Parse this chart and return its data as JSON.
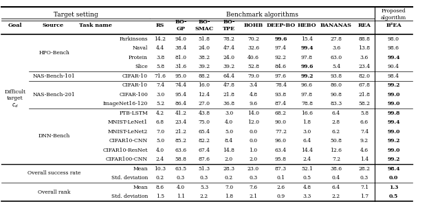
{
  "header2": [
    "Goal",
    "Source",
    "Task name",
    "RS",
    "BO-\nGP",
    "BO-\nSMAC",
    "BO-\nTPE",
    "BOHB",
    "DEEP-BO",
    "HEBO",
    "BANANAS",
    "REA",
    "B²EA"
  ],
  "sections": [
    {
      "source": "HPO-Bench",
      "rows": [
        {
          "task": "Parkinsons",
          "vals": [
            "14.2",
            "94.0",
            "51.8",
            "78.2",
            "70.2",
            "99.6",
            "15.4",
            "27.8",
            "88.8",
            "98.0"
          ],
          "bold": [
            5
          ]
        },
        {
          "task": "Naval",
          "vals": [
            "4.4",
            "38.4",
            "24.0",
            "47.4",
            "32.6",
            "97.4",
            "99.4",
            "3.6",
            "13.8",
            "98.6"
          ],
          "bold": [
            6
          ]
        },
        {
          "task": "Protein",
          "vals": [
            "3.8",
            "81.0",
            "38.2",
            "24.0",
            "40.6",
            "92.2",
            "97.8",
            "63.0",
            "3.6",
            "99.4"
          ],
          "bold": [
            9
          ]
        },
        {
          "task": "Slice",
          "vals": [
            "5.8",
            "31.6",
            "39.2",
            "39.2",
            "52.8",
            "84.6",
            "99.6",
            "5.4",
            "23.4",
            "90.4"
          ],
          "bold": [
            6
          ]
        }
      ]
    },
    {
      "source": "NAS-Bench-101",
      "rows": [
        {
          "task": "CIFAR-10",
          "vals": [
            "71.6",
            "95.0",
            "88.2",
            "64.4",
            "79.0",
            "97.6",
            "99.2",
            "93.8",
            "82.0",
            "98.4"
          ],
          "bold": [
            6
          ]
        }
      ]
    },
    {
      "source": "NAS-Bench-201",
      "rows": [
        {
          "task": "CIFAR-10",
          "vals": [
            "7.4",
            "74.4",
            "16.0",
            "47.8",
            "3.4",
            "78.4",
            "96.6",
            "86.0",
            "67.8",
            "99.2"
          ],
          "bold": [
            9
          ]
        },
        {
          "task": "CIFAR-100",
          "vals": [
            "3.0",
            "95.4",
            "12.4",
            "21.8",
            "4.8",
            "93.8",
            "97.8",
            "90.8",
            "21.8",
            "99.0"
          ],
          "bold": [
            9
          ]
        },
        {
          "task": "ImageNet16-120",
          "vals": [
            "5.2",
            "86.4",
            "27.0",
            "36.8",
            "9.6",
            "87.4",
            "78.8",
            "83.3",
            "58.2",
            "99.0"
          ],
          "bold": [
            9
          ]
        }
      ]
    },
    {
      "source": "DNN-Bench",
      "rows": [
        {
          "task": "PTB-LSTM",
          "vals": [
            "4.2",
            "41.2",
            "43.8",
            "3.0",
            "14.0",
            "68.2",
            "16.6",
            "6.4",
            "5.8",
            "99.8"
          ],
          "bold": [
            9
          ]
        },
        {
          "task": "MNIST-LeNet1",
          "vals": [
            "6.8",
            "23.4",
            "75.0",
            "4.0",
            "12.0",
            "90.0",
            "1.8",
            "2.8",
            "6.6",
            "99.4"
          ],
          "bold": [
            9
          ]
        },
        {
          "task": "MNIST-LeNet2",
          "vals": [
            "7.0",
            "21.2",
            "65.4",
            "5.0",
            "0.0",
            "77.2",
            "3.0",
            "6.2",
            "7.4",
            "99.0"
          ],
          "bold": [
            9
          ]
        },
        {
          "task": "CIFAR10-CNN",
          "vals": [
            "5.0",
            "85.2",
            "82.2",
            "8.4",
            "0.0",
            "96.0",
            "6.4",
            "50.8",
            "9.2",
            "99.2"
          ],
          "bold": [
            9
          ]
        },
        {
          "task": "CIFAR10-ResNet",
          "vals": [
            "4.0",
            "63.6",
            "67.4",
            "14.8",
            "1.0",
            "63.4",
            "14.4",
            "12.6",
            "4.6",
            "99.0"
          ],
          "bold": [
            9
          ]
        },
        {
          "task": "CIFAR100-CNN",
          "vals": [
            "2.4",
            "58.8",
            "87.6",
            "2.0",
            "2.0",
            "95.8",
            "2.4",
            "7.2",
            "1.4",
            "99.2"
          ],
          "bold": [
            9
          ]
        }
      ]
    }
  ],
  "summary_rows": [
    {
      "source": "Overall success rate",
      "rows": [
        {
          "task": "Mean",
          "vals": [
            "10.3",
            "63.5",
            "51.3",
            "28.3",
            "23.0",
            "87.3",
            "52.1",
            "38.6",
            "28.2",
            "98.4"
          ],
          "bold": [
            9
          ]
        },
        {
          "task": "Std. deviation",
          "vals": [
            "0.2",
            "0.3",
            "0.3",
            "0.2",
            "0.3",
            "0.1",
            "0.5",
            "0.4",
            "0.3",
            "0.0"
          ],
          "bold": [
            9
          ]
        }
      ]
    },
    {
      "source": "Overall rank",
      "rows": [
        {
          "task": "Mean",
          "vals": [
            "8.6",
            "4.0",
            "5.3",
            "7.0",
            "7.6",
            "2.6",
            "4.8",
            "6.4",
            "7.1",
            "1.3"
          ],
          "bold": [
            9
          ]
        },
        {
          "task": "Std. deviation",
          "vals": [
            "1.5",
            "1.1",
            "2.2",
            "1.8",
            "2.1",
            "0.9",
            "3.3",
            "2.2",
            "1.7",
            "0.5"
          ],
          "bold": [
            9
          ]
        }
      ]
    }
  ]
}
